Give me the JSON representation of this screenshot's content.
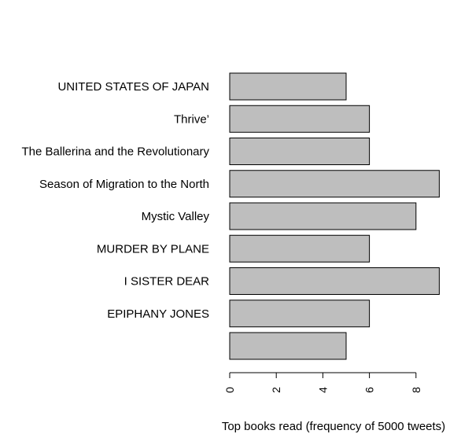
{
  "chart_data": {
    "type": "bar",
    "orientation": "horizontal",
    "categories": [
      "UNITED STATES OF JAPAN",
      "Thrive’",
      "The Ballerina and the Revolutionary",
      "Season of Migration to the North",
      "Mystic Valley",
      "MURDER BY PLANE",
      "I SISTER DEAR",
      "EPIPHANY JONES",
      ""
    ],
    "values": [
      5,
      6,
      6,
      9,
      8,
      6,
      9,
      6,
      5
    ],
    "xlabel": "Top books read (frequency of 5000 tweets)",
    "ylabel": "",
    "title": "",
    "xlim": [
      0,
      9
    ],
    "x_ticks": [
      "0",
      "2",
      "4",
      "6",
      "8"
    ],
    "tick_label_rotation": "vertical",
    "grid": false,
    "legend": "none",
    "bar_color": "#bebebe",
    "bar_border_color": "#000000"
  }
}
